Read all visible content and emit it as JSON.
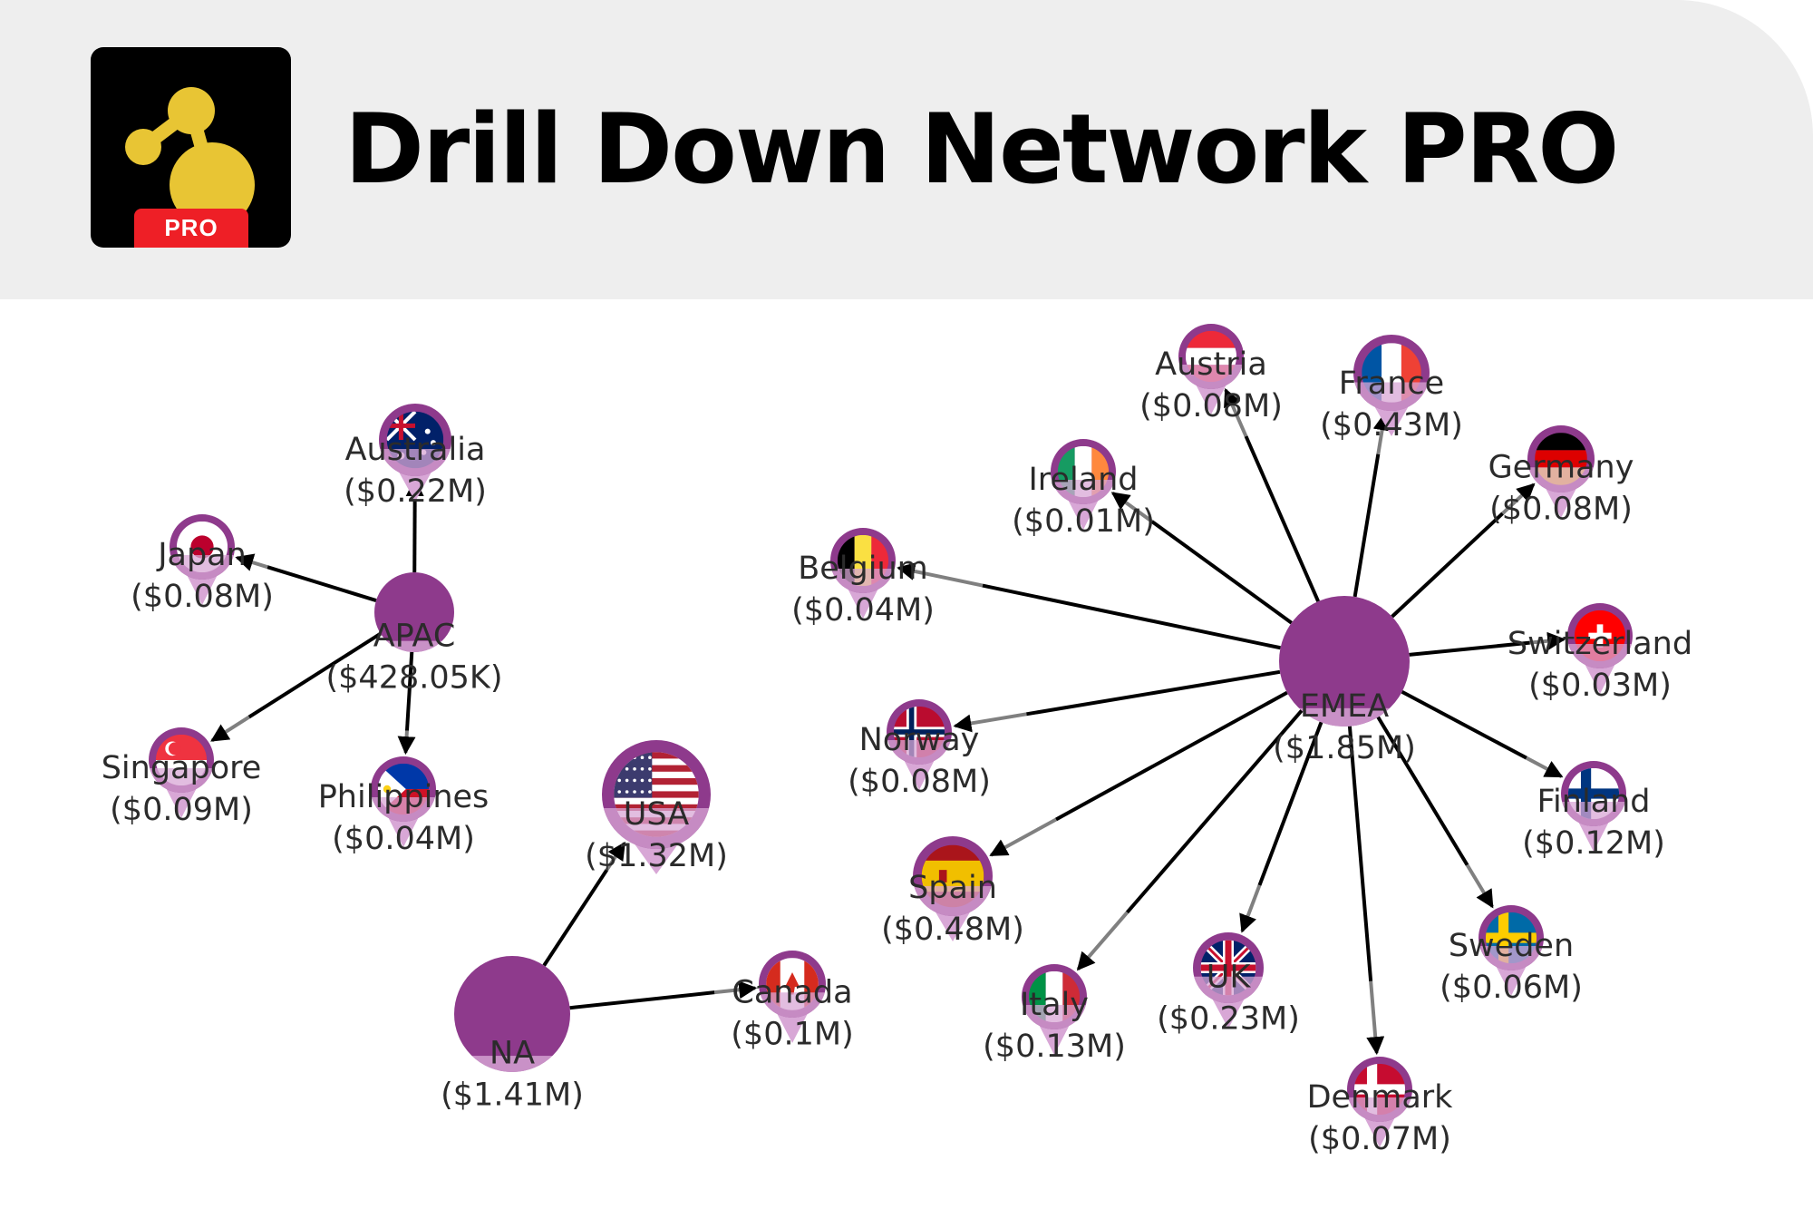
{
  "header": {
    "title": "Drill Down Network PRO",
    "logo_badge": "PRO",
    "logo_icon": "network-share-icon"
  },
  "colors": {
    "header_bg": "#eeeeee",
    "node_fill": "#8e3a8c",
    "pin_light": "#d8a7d6",
    "edge_dark": "#000000",
    "edge_grey": "#808080",
    "logo_yellow": "#e8c534",
    "badge_red": "#ee1f26"
  },
  "network": {
    "nodes": [
      {
        "id": "APAC",
        "name": "APAC",
        "value": "($428.05K)",
        "type": "region"
      },
      {
        "id": "NA",
        "name": "NA",
        "value": "($1.41M)",
        "type": "region"
      },
      {
        "id": "EMEA",
        "name": "EMEA",
        "value": "($1.85M)",
        "type": "region"
      },
      {
        "id": "Australia",
        "name": "Australia",
        "value": "($0.22M)",
        "type": "country",
        "flag": "australia"
      },
      {
        "id": "Japan",
        "name": "Japan",
        "value": "($0.08M)",
        "type": "country",
        "flag": "japan"
      },
      {
        "id": "Singapore",
        "name": "Singapore",
        "value": "($0.09M)",
        "type": "country",
        "flag": "singapore"
      },
      {
        "id": "Philippines",
        "name": "Philippines",
        "value": "($0.04M)",
        "type": "country",
        "flag": "philippines"
      },
      {
        "id": "USA",
        "name": "USA",
        "value": "($1.32M)",
        "type": "country",
        "flag": "usa"
      },
      {
        "id": "Canada",
        "name": "Canada",
        "value": "($0.1M)",
        "type": "country",
        "flag": "canada"
      },
      {
        "id": "Austria",
        "name": "Austria",
        "value": "($0.08M)",
        "type": "country",
        "flag": "austria"
      },
      {
        "id": "France",
        "name": "France",
        "value": "($0.43M)",
        "type": "country",
        "flag": "france"
      },
      {
        "id": "Ireland",
        "name": "Ireland",
        "value": "($0.01M)",
        "type": "country",
        "flag": "ireland"
      },
      {
        "id": "Germany",
        "name": "Germany",
        "value": "($0.08M)",
        "type": "country",
        "flag": "germany"
      },
      {
        "id": "Belgium",
        "name": "Belgium",
        "value": "($0.04M)",
        "type": "country",
        "flag": "belgium"
      },
      {
        "id": "Switzerland",
        "name": "Switzerland",
        "value": "($0.03M)",
        "type": "country",
        "flag": "switzerland"
      },
      {
        "id": "Norway",
        "name": "Norway",
        "value": "($0.08M)",
        "type": "country",
        "flag": "norway"
      },
      {
        "id": "Finland",
        "name": "Finland",
        "value": "($0.12M)",
        "type": "country",
        "flag": "finland"
      },
      {
        "id": "Spain",
        "name": "Spain",
        "value": "($0.48M)",
        "type": "country",
        "flag": "spain"
      },
      {
        "id": "Sweden",
        "name": "Sweden",
        "value": "($0.06M)",
        "type": "country",
        "flag": "sweden"
      },
      {
        "id": "Italy",
        "name": "Italy",
        "value": "($0.13M)",
        "type": "country",
        "flag": "italy"
      },
      {
        "id": "UK",
        "name": "UK",
        "value": "($0.23M)",
        "type": "country",
        "flag": "uk"
      },
      {
        "id": "Denmark",
        "name": "Denmark",
        "value": "($0.07M)",
        "type": "country",
        "flag": "denmark"
      }
    ],
    "edges": [
      {
        "from": "APAC",
        "to": "Australia"
      },
      {
        "from": "APAC",
        "to": "Japan"
      },
      {
        "from": "APAC",
        "to": "Singapore"
      },
      {
        "from": "APAC",
        "to": "Philippines"
      },
      {
        "from": "NA",
        "to": "USA"
      },
      {
        "from": "NA",
        "to": "Canada"
      },
      {
        "from": "EMEA",
        "to": "Austria"
      },
      {
        "from": "EMEA",
        "to": "France"
      },
      {
        "from": "EMEA",
        "to": "Ireland"
      },
      {
        "from": "EMEA",
        "to": "Germany"
      },
      {
        "from": "EMEA",
        "to": "Belgium"
      },
      {
        "from": "EMEA",
        "to": "Switzerland"
      },
      {
        "from": "EMEA",
        "to": "Norway"
      },
      {
        "from": "EMEA",
        "to": "Finland"
      },
      {
        "from": "EMEA",
        "to": "Spain"
      },
      {
        "from": "EMEA",
        "to": "Sweden"
      },
      {
        "from": "EMEA",
        "to": "Italy"
      },
      {
        "from": "EMEA",
        "to": "UK"
      },
      {
        "from": "EMEA",
        "to": "Denmark"
      }
    ]
  }
}
